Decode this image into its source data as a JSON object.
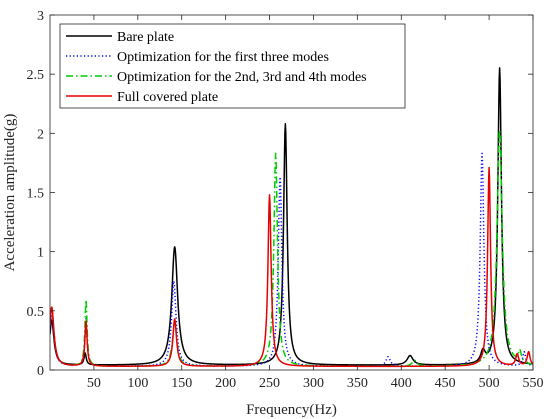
{
  "chart_data": {
    "type": "line",
    "xlabel": "Frequency(Hz)",
    "ylabel": "Acceleration amplitude(g)",
    "xlim": [
      0,
      550
    ],
    "ylim": [
      0,
      3
    ],
    "xticks": [
      50,
      100,
      150,
      200,
      250,
      300,
      350,
      400,
      450,
      500,
      550
    ],
    "yticks": [
      0,
      0.5,
      1,
      1.5,
      2,
      2.5,
      3
    ],
    "x_tick_labels": [
      "50",
      "100",
      "150",
      "200",
      "250",
      "300",
      "350",
      "400",
      "450",
      "500",
      "550"
    ],
    "y_tick_labels": [
      "0",
      "0.5",
      "1",
      "1.5",
      "2",
      "2.5",
      "3"
    ],
    "grid": false,
    "legend_position": "top-left",
    "series": [
      {
        "name": "Bare plate",
        "color": "#000000",
        "dash": "solid",
        "peaks": [
          [
            2,
            0.38,
            3
          ],
          [
            40,
            0.1,
            1.5
          ],
          [
            142,
            1.0,
            4
          ],
          [
            268,
            2.04,
            2.5
          ],
          [
            410,
            0.08,
            4
          ],
          [
            493,
            0.1,
            3
          ],
          [
            512,
            2.51,
            2.5
          ]
        ],
        "baseline": 0.04
      },
      {
        "name": "Optimization for the first three modes",
        "color": "#0000ff",
        "dash": "dotted",
        "peaks": [
          [
            2,
            0.43,
            3
          ],
          [
            41,
            0.4,
            1.5
          ],
          [
            141,
            0.72,
            3
          ],
          [
            262,
            1.6,
            2.5
          ],
          [
            385,
            0.08,
            3
          ],
          [
            492,
            1.8,
            2.5
          ],
          [
            540,
            0.12,
            2
          ]
        ],
        "baseline": 0.03
      },
      {
        "name": "Optimization for the 2nd, 3rd and 4th modes",
        "color": "#00cc00",
        "dash": "dashdot",
        "peaks": [
          [
            2,
            0.5,
            3
          ],
          [
            41,
            0.56,
            1.5
          ],
          [
            142,
            0.38,
            3
          ],
          [
            257,
            1.8,
            2.5
          ],
          [
            415,
            0.05,
            3
          ],
          [
            512,
            2.0,
            3.5
          ],
          [
            535,
            0.1,
            2
          ]
        ],
        "baseline": 0.03
      },
      {
        "name": "Full covered plate",
        "color": "#e60000",
        "dash": "solid",
        "peaks": [
          [
            2,
            0.5,
            3
          ],
          [
            41,
            0.38,
            1.5
          ],
          [
            142,
            0.4,
            2.5
          ],
          [
            250,
            1.45,
            2.2
          ],
          [
            500,
            1.68,
            2
          ],
          [
            532,
            0.1,
            2
          ],
          [
            545,
            0.12,
            2
          ]
        ],
        "baseline": 0.03
      }
    ]
  }
}
